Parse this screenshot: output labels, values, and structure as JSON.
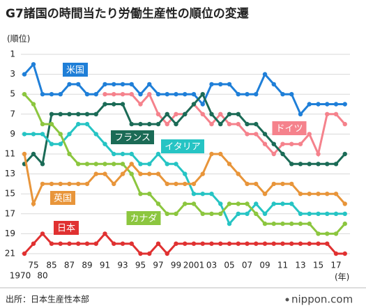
{
  "chart_data": {
    "type": "line",
    "title": "G7諸国の時間当たり労働生産性の順位の変遷",
    "y_label": "(順位)",
    "x_label": "(年)",
    "source": "出所：日本生産性本部",
    "logo": "nippon.com",
    "categories": [
      "1970",
      "75",
      "80",
      "85",
      null,
      "87",
      null,
      "89",
      null,
      "91",
      null,
      "93",
      null,
      "95",
      null,
      "97",
      null,
      "99",
      null,
      "2001",
      null,
      "03",
      null,
      "05",
      null,
      "07",
      null,
      "09",
      null,
      "11",
      null,
      "13",
      null,
      "15",
      null,
      "17",
      null
    ],
    "ylim": [
      21,
      1
    ],
    "yticks": [
      1,
      3,
      5,
      7,
      9,
      11,
      13,
      15,
      17,
      19,
      21
    ],
    "grid": true,
    "series": [
      {
        "name": "米国",
        "color": "#1f7fd8",
        "values": [
          3,
          2,
          5,
          5,
          5,
          4,
          4,
          5,
          5,
          4,
          4,
          4,
          4,
          5,
          4,
          5,
          5,
          5,
          5,
          5,
          6,
          4,
          4,
          4,
          5,
          5,
          5,
          3,
          4,
          5,
          5,
          7,
          6,
          6,
          6,
          6,
          6
        ]
      },
      {
        "name": "ドイツ",
        "color": "#f5828c",
        "values": [
          null,
          null,
          null,
          null,
          null,
          null,
          null,
          null,
          null,
          5,
          5,
          5,
          5,
          6,
          5,
          7,
          8,
          7,
          7,
          6,
          7,
          8,
          7,
          8,
          8,
          9,
          9,
          10,
          11,
          10,
          10,
          10,
          9,
          11,
          7,
          7,
          8
        ]
      },
      {
        "name": "フランス",
        "color": "#1b6b56",
        "values": [
          12,
          11,
          12,
          7,
          7,
          7,
          7,
          7,
          7,
          6,
          6,
          6,
          8,
          8,
          8,
          8,
          7,
          8,
          7,
          6,
          5,
          7,
          8,
          7,
          7,
          8,
          8,
          9,
          10,
          11,
          12,
          12,
          12,
          12,
          12,
          12,
          11
        ]
      },
      {
        "name": "イタリア",
        "color": "#26c4c4",
        "values": [
          9,
          9,
          9,
          10,
          10,
          9,
          8,
          8,
          9,
          10,
          11,
          11,
          11,
          12,
          12,
          11,
          12,
          12,
          13,
          15,
          15,
          15,
          16,
          18,
          17,
          17,
          16,
          17,
          16,
          16,
          16,
          17,
          17,
          17,
          17,
          17,
          17
        ]
      },
      {
        "name": "カナダ",
        "color": "#8cc63f",
        "values": [
          5,
          6,
          8,
          8,
          9,
          11,
          12,
          12,
          12,
          12,
          12,
          12,
          13,
          15,
          15,
          16,
          17,
          17,
          16,
          16,
          17,
          17,
          17,
          16,
          16,
          16,
          17,
          18,
          18,
          18,
          18,
          18,
          18,
          19,
          19,
          19,
          18
        ]
      },
      {
        "name": "英国",
        "color": "#e8953a",
        "values": [
          11,
          16,
          14,
          14,
          14,
          14,
          14,
          14,
          13,
          13,
          14,
          13,
          12,
          13,
          13,
          13,
          14,
          14,
          14,
          14,
          13,
          11,
          11,
          12,
          13,
          14,
          14,
          15,
          14,
          14,
          14,
          15,
          15,
          15,
          15,
          15,
          16
        ]
      },
      {
        "name": "日本",
        "color": "#e03131",
        "values": [
          21,
          20,
          19,
          20,
          20,
          20,
          20,
          20,
          20,
          19,
          20,
          20,
          20,
          21,
          21,
          20,
          21,
          20,
          20,
          20,
          20,
          20,
          20,
          20,
          20,
          20,
          20,
          20,
          20,
          20,
          20,
          20,
          20,
          20,
          20,
          21,
          21
        ]
      }
    ]
  }
}
